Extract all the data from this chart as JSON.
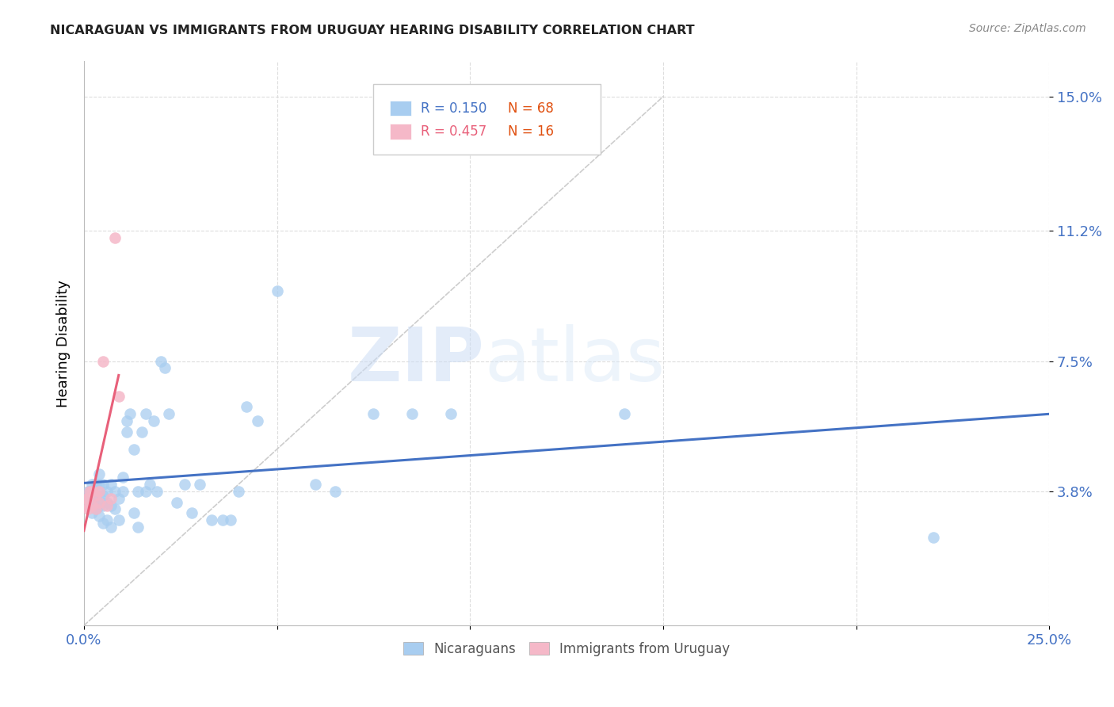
{
  "title": "NICARAGUAN VS IMMIGRANTS FROM URUGUAY HEARING DISABILITY CORRELATION CHART",
  "source": "Source: ZipAtlas.com",
  "ylabel": "Hearing Disability",
  "legend_r1": "R = 0.150",
  "legend_n1": "N = 68",
  "legend_r2": "R = 0.457",
  "legend_n2": "N = 16",
  "color_blue": "#a8cdf0",
  "color_pink": "#f5b8c8",
  "color_blue_dark": "#4472c4",
  "color_pink_dark": "#e8607a",
  "color_diag_line": "#c8c8c8",
  "background_color": "#ffffff",
  "watermark_zip": "ZIP",
  "watermark_atlas": "atlas",
  "xlim": [
    0.0,
    0.25
  ],
  "ylim": [
    0.0,
    0.16
  ],
  "ytick_vals": [
    0.038,
    0.075,
    0.112,
    0.15
  ],
  "ytick_labels": [
    "3.8%",
    "7.5%",
    "11.2%",
    "15.0%"
  ],
  "xtick_vals": [
    0.0,
    0.05,
    0.1,
    0.15,
    0.2,
    0.25
  ],
  "xtick_labels": [
    "0.0%",
    "",
    "",
    "",
    "",
    "25.0%"
  ],
  "nic_x": [
    0.0005,
    0.001,
    0.001,
    0.0015,
    0.0015,
    0.002,
    0.002,
    0.002,
    0.002,
    0.003,
    0.003,
    0.003,
    0.003,
    0.004,
    0.004,
    0.004,
    0.004,
    0.004,
    0.005,
    0.005,
    0.005,
    0.005,
    0.006,
    0.006,
    0.006,
    0.007,
    0.007,
    0.007,
    0.008,
    0.008,
    0.009,
    0.009,
    0.01,
    0.01,
    0.011,
    0.011,
    0.012,
    0.013,
    0.013,
    0.014,
    0.014,
    0.015,
    0.016,
    0.016,
    0.017,
    0.018,
    0.019,
    0.02,
    0.021,
    0.022,
    0.024,
    0.026,
    0.028,
    0.03,
    0.033,
    0.036,
    0.038,
    0.04,
    0.042,
    0.045,
    0.05,
    0.06,
    0.065,
    0.075,
    0.085,
    0.095,
    0.14,
    0.22
  ],
  "nic_y": [
    0.036,
    0.034,
    0.038,
    0.035,
    0.038,
    0.032,
    0.036,
    0.038,
    0.04,
    0.034,
    0.033,
    0.037,
    0.04,
    0.031,
    0.034,
    0.037,
    0.04,
    0.043,
    0.029,
    0.034,
    0.037,
    0.04,
    0.03,
    0.035,
    0.038,
    0.028,
    0.034,
    0.04,
    0.033,
    0.038,
    0.03,
    0.036,
    0.042,
    0.038,
    0.055,
    0.058,
    0.06,
    0.032,
    0.05,
    0.028,
    0.038,
    0.055,
    0.06,
    0.038,
    0.04,
    0.058,
    0.038,
    0.075,
    0.073,
    0.06,
    0.035,
    0.04,
    0.032,
    0.04,
    0.03,
    0.03,
    0.03,
    0.038,
    0.062,
    0.058,
    0.095,
    0.04,
    0.038,
    0.06,
    0.06,
    0.06,
    0.06,
    0.025
  ],
  "uru_x": [
    0.0004,
    0.0006,
    0.001,
    0.001,
    0.0015,
    0.002,
    0.002,
    0.003,
    0.003,
    0.004,
    0.004,
    0.005,
    0.006,
    0.007,
    0.008,
    0.009
  ],
  "uru_y": [
    0.034,
    0.036,
    0.033,
    0.036,
    0.038,
    0.034,
    0.038,
    0.033,
    0.037,
    0.035,
    0.038,
    0.075,
    0.034,
    0.036,
    0.11,
    0.065
  ]
}
